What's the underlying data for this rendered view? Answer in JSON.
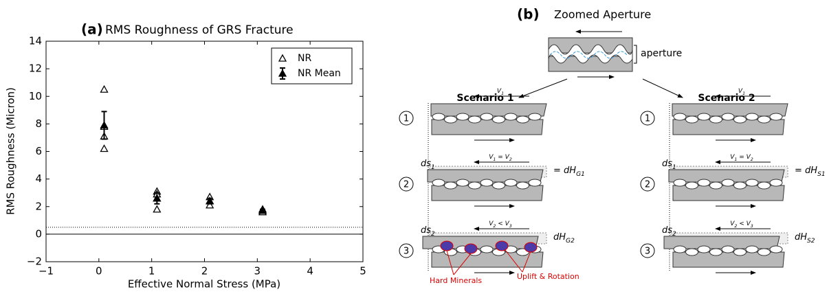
{
  "chart_data": {
    "type": "scatter",
    "label": "(a)",
    "title": "RMS Roughness of GRS Fracture",
    "xlabel": "Effective Normal Stress (MPa)",
    "ylabel": "RMS Roughness (Micron)",
    "xlim": [
      -1,
      5
    ],
    "ylim": [
      -2,
      14
    ],
    "xticks": [
      {
        "value": -1,
        "label": "−1"
      },
      0,
      1,
      2,
      3,
      4,
      5
    ],
    "yticks": [
      {
        "value": -2,
        "label": "−2"
      },
      0,
      2,
      4,
      6,
      8,
      10,
      12,
      14
    ],
    "hlines": [
      {
        "value": 0,
        "style": "solid"
      },
      {
        "value": 0.5,
        "style": "dotted"
      }
    ],
    "legend": "upper right",
    "series": [
      {
        "name": "NR",
        "color": "#000000",
        "marker": "open-triangle",
        "x": [
          0.1,
          0.1,
          0.1,
          0.1,
          1.1,
          1.1,
          1.1,
          1.1,
          2.1,
          2.1,
          2.1,
          3.1,
          3.1,
          3.1
        ],
        "values": [
          10.5,
          7.8,
          7.1,
          6.2,
          3.1,
          2.9,
          2.6,
          1.8,
          2.7,
          2.4,
          2.1,
          1.8,
          1.7,
          1.6
        ]
      },
      {
        "name": "NR Mean",
        "color": "#000000",
        "marker": "filled-triangle",
        "x": [
          0.1,
          1.1,
          2.1,
          3.1
        ],
        "values": [
          7.9,
          2.6,
          2.4,
          1.7
        ],
        "errors": [
          1.0,
          0.4,
          0.2,
          0.1
        ]
      }
    ]
  },
  "diagram": {
    "label": "(b)",
    "title": "Zoomed Aperture",
    "aperture_label": "aperture",
    "scenarios": [
      {
        "title": "Scenario 1",
        "steps": [
          {
            "number": "1",
            "velocity": [
              {
                "text": "V"
              },
              {
                "sub": "1"
              }
            ]
          },
          {
            "number": "2",
            "velocity": [
              {
                "text": "V"
              },
              {
                "sub": "1"
              },
              {
                "text": " = V"
              },
              {
                "sub": "2"
              }
            ],
            "shift": [
              {
                "text": "ds"
              },
              {
                "sub": "1"
              }
            ],
            "height": [
              {
                "text": "= dH"
              },
              {
                "sub": "G1"
              }
            ]
          },
          {
            "number": "3",
            "velocity": [
              {
                "text": "V"
              },
              {
                "sub": "2"
              },
              {
                "text": " < V"
              },
              {
                "sub": "3"
              }
            ],
            "shift": [
              {
                "text": "ds"
              },
              {
                "sub": "2"
              }
            ],
            "height": [
              {
                "text": "dH"
              },
              {
                "sub": "G2"
              }
            ]
          }
        ],
        "annotations": [
          "Hard Minerals",
          "Uplift & Rotation"
        ]
      },
      {
        "title": "Scenario 2",
        "steps": [
          {
            "number": "1",
            "velocity": [
              {
                "text": "V"
              },
              {
                "sub": "1"
              }
            ]
          },
          {
            "number": "2",
            "velocity": [
              {
                "text": "V"
              },
              {
                "sub": "1"
              },
              {
                "text": " = V"
              },
              {
                "sub": "2"
              }
            ],
            "shift": [
              {
                "text": "ds"
              },
              {
                "sub": "1"
              }
            ],
            "height": [
              {
                "text": "= dH"
              },
              {
                "sub": "S1"
              }
            ]
          },
          {
            "number": "3",
            "velocity": [
              {
                "text": "V"
              },
              {
                "sub": "2"
              },
              {
                "text": " < V"
              },
              {
                "sub": "3"
              }
            ],
            "shift": [
              {
                "text": "ds"
              },
              {
                "sub": "2"
              }
            ],
            "height": [
              {
                "text": "dH"
              },
              {
                "sub": "S2"
              }
            ]
          }
        ]
      }
    ]
  }
}
